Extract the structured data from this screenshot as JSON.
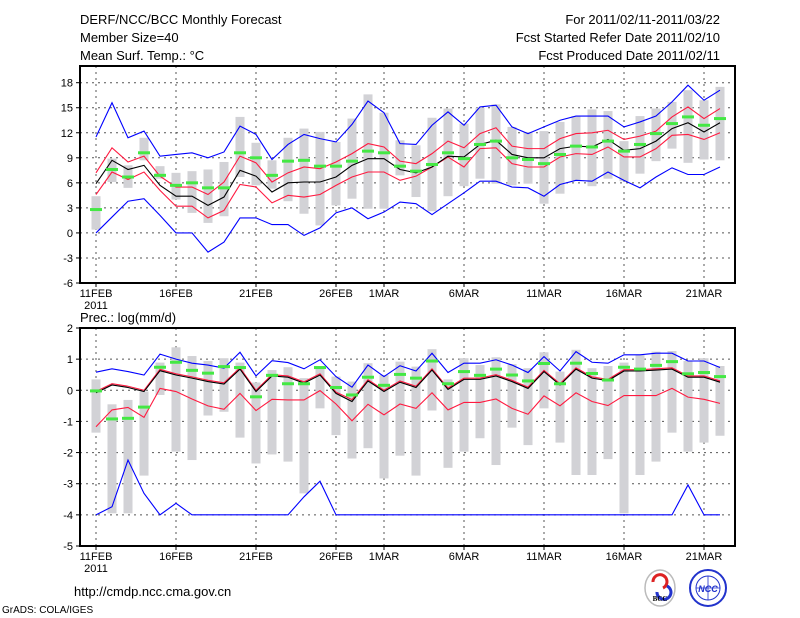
{
  "header": {
    "title": "DERF/NCC/BCC Monthly Forecast",
    "member_size": "Member Size=40",
    "variable": "Mean Surf. Temp.: °C",
    "period": "For 2011/02/11-2011/03/22",
    "started": "Fcst Started Refer Date 2011/02/10",
    "produced": "Fcst Produced Date 2011/02/11"
  },
  "footer": {
    "url": "http://cmdp.ncc.cma.gov.cn",
    "credit": "GrADS: COLA/IGES",
    "logo_bcc": "BCC",
    "logo_ncc": "NCC"
  },
  "colors": {
    "max_min": "#0000ff",
    "spread": "#ff1a40",
    "mean": "#000000",
    "obs": "#44e844",
    "range": "#d2d2d6"
  },
  "chart_data": [
    {
      "type": "line",
      "title": "Mean Surf. Temp.: °C",
      "ylim": [
        -6,
        20
      ],
      "yticks": [
        -6,
        -3,
        0,
        3,
        6,
        9,
        12,
        15,
        18
      ],
      "xtick_labels": [
        {
          "day": 0,
          "label": "11FEB",
          "sub": "2011"
        },
        {
          "day": 5,
          "label": "16FEB"
        },
        {
          "day": 10,
          "label": "21FEB"
        },
        {
          "day": 15,
          "label": "26FEB"
        },
        {
          "day": 18,
          "label": "1MAR"
        },
        {
          "day": 23,
          "label": "6MAR"
        },
        {
          "day": 28,
          "label": "11MAR"
        },
        {
          "day": 33,
          "label": "16MAR"
        },
        {
          "day": 38,
          "label": "21MAR"
        }
      ],
      "max": [
        11.5,
        15.6,
        11.4,
        12.2,
        9.2,
        9.4,
        9.6,
        9.0,
        9.7,
        12.8,
        11.8,
        8.8,
        10.6,
        11.8,
        11.3,
        10.9,
        13.0,
        15.8,
        14.4,
        10.7,
        10.6,
        12.9,
        14.5,
        12.9,
        15.1,
        15.3,
        12.7,
        11.9,
        12.7,
        13.5,
        14.0,
        14.0,
        14.0,
        12.7,
        13.3,
        14.0,
        15.7,
        17.7,
        15.9,
        17.1
      ],
      "upper": [
        7.2,
        10.2,
        8.5,
        9.2,
        6.8,
        5.5,
        5.5,
        4.6,
        6.1,
        9.2,
        8.4,
        6.1,
        7.2,
        7.9,
        7.7,
        8.5,
        9.5,
        10.7,
        10.3,
        8.6,
        8.3,
        9.5,
        11.0,
        10.2,
        11.9,
        12.6,
        10.4,
        10.1,
        10.1,
        11.3,
        11.9,
        12.0,
        12.3,
        11.2,
        11.6,
        12.2,
        13.9,
        15.1,
        13.7,
        14.9
      ],
      "mean": [
        5.9,
        8.7,
        7.6,
        8.1,
        5.7,
        4.4,
        4.4,
        3.3,
        4.3,
        7.5,
        6.8,
        4.9,
        6.0,
        6.1,
        6.1,
        6.7,
        8.1,
        8.9,
        8.9,
        7.6,
        7.2,
        7.9,
        9.2,
        9.1,
        10.6,
        11.1,
        9.4,
        9.0,
        9.0,
        10.1,
        10.4,
        10.3,
        11.2,
        9.9,
        10.1,
        11.0,
        12.5,
        13.2,
        12.1,
        13.2
      ],
      "lower": [
        4.6,
        7.3,
        6.4,
        7.3,
        5.1,
        3.2,
        3.2,
        1.8,
        2.7,
        5.8,
        5.5,
        3.6,
        4.5,
        4.3,
        4.6,
        5.7,
        6.7,
        7.3,
        7.3,
        6.3,
        6.8,
        7.9,
        9.1,
        7.9,
        10.1,
        10.2,
        8.3,
        7.9,
        7.9,
        9.1,
        9.5,
        9.4,
        10.3,
        9.1,
        9.1,
        10.1,
        11.7,
        11.8,
        11.2,
        12.0
      ],
      "min": [
        0.0,
        1.9,
        3.8,
        4.1,
        2.1,
        0.0,
        0.0,
        -2.3,
        -1.1,
        1.8,
        1.8,
        1.0,
        1.0,
        -0.3,
        0.6,
        2.4,
        3.0,
        1.7,
        2.5,
        3.7,
        3.5,
        2.2,
        3.5,
        4.8,
        6.2,
        6.2,
        5.5,
        5.4,
        4.4,
        5.8,
        6.3,
        6.2,
        7.3,
        6.3,
        5.4,
        6.7,
        7.8,
        7.0,
        7.0,
        7.9
      ],
      "observed": [
        2.8,
        7.6,
        6.7,
        9.6,
        6.9,
        5.7,
        6.0,
        5.4,
        5.4,
        9.6,
        9.0,
        6.9,
        8.6,
        8.7,
        8.0,
        8.0,
        8.6,
        9.8,
        9.6,
        8.0,
        7.4,
        8.2,
        9.6,
        8.9,
        10.6,
        11.0,
        9.0,
        8.8,
        8.3,
        9.4,
        10.4,
        10.3,
        11.0,
        9.8,
        10.6,
        11.9,
        13.1,
        13.9,
        12.9,
        13.7
      ],
      "range_high": [
        4.4,
        8.9,
        8.1,
        11.4,
        8.0,
        7.2,
        7.4,
        7.6,
        8.5,
        13.9,
        10.8,
        8.7,
        11.4,
        12.5,
        12.1,
        10.9,
        13.7,
        16.6,
        14.4,
        11.1,
        10.5,
        13.8,
        14.9,
        13.1,
        15.0,
        15.4,
        12.7,
        12.1,
        12.2,
        13.3,
        14.0,
        14.8,
        14.6,
        11.0,
        14.0,
        14.9,
        15.7,
        17.1,
        15.9,
        17.5
      ],
      "range_low": [
        0.4,
        6.1,
        5.4,
        8.7,
        6.5,
        4.0,
        2.4,
        1.2,
        2.0,
        6.7,
        5.7,
        5.3,
        3.8,
        2.3,
        0.9,
        3.3,
        4.1,
        2.9,
        2.9,
        6.9,
        4.3,
        2.6,
        4.4,
        5.6,
        6.5,
        5.9,
        5.7,
        5.9,
        3.5,
        4.7,
        6.3,
        5.6,
        6.5,
        6.2,
        7.1,
        8.6,
        10.1,
        8.4,
        8.8,
        8.7
      ]
    },
    {
      "type": "line",
      "title": "Prec.: log(mm/d)",
      "ylim": [
        -5,
        2
      ],
      "yticks": [
        -5,
        -4,
        -3,
        -2,
        -1,
        0,
        1,
        2
      ],
      "xtick_labels": [
        {
          "day": 0,
          "label": "11FEB",
          "sub": "2011"
        },
        {
          "day": 5,
          "label": "16FEB"
        },
        {
          "day": 10,
          "label": "21FEB"
        },
        {
          "day": 15,
          "label": "26FEB"
        },
        {
          "day": 18,
          "label": "1MAR"
        },
        {
          "day": 23,
          "label": "6MAR"
        },
        {
          "day": 28,
          "label": "11MAR"
        },
        {
          "day": 33,
          "label": "16MAR"
        },
        {
          "day": 38,
          "label": "21MAR"
        }
      ],
      "max": [
        0.58,
        0.69,
        0.6,
        0.49,
        1.16,
        1.0,
        0.87,
        0.81,
        0.71,
        1.22,
        0.46,
        0.95,
        0.89,
        0.69,
        0.98,
        0.44,
        0.1,
        0.81,
        0.44,
        0.79,
        0.62,
        1.19,
        0.57,
        0.87,
        0.87,
        0.98,
        0.81,
        0.57,
        1.08,
        0.62,
        1.24,
        0.9,
        0.87,
        1.14,
        1.14,
        1.19,
        1.19,
        0.94,
        0.94,
        0.73
      ],
      "upper": [
        -0.04,
        0.21,
        0.13,
        0.0,
        0.67,
        0.53,
        0.43,
        0.32,
        0.24,
        0.72,
        0.0,
        0.5,
        0.46,
        0.27,
        0.53,
        -0.06,
        -0.3,
        0.34,
        0.0,
        0.3,
        0.13,
        0.69,
        0.07,
        0.39,
        0.39,
        0.5,
        0.32,
        0.1,
        0.64,
        0.21,
        0.72,
        0.43,
        0.35,
        0.66,
        0.66,
        0.69,
        0.72,
        0.46,
        0.46,
        0.3
      ],
      "mean": [
        -0.08,
        0.17,
        0.09,
        -0.04,
        0.63,
        0.49,
        0.39,
        0.28,
        0.2,
        0.68,
        -0.04,
        0.46,
        0.42,
        0.23,
        0.49,
        -0.1,
        -0.36,
        0.3,
        -0.04,
        0.26,
        0.09,
        0.65,
        0.03,
        0.35,
        0.35,
        0.46,
        0.28,
        0.06,
        0.6,
        0.17,
        0.68,
        0.39,
        0.31,
        0.62,
        0.62,
        0.65,
        0.68,
        0.42,
        0.42,
        0.26
      ],
      "lower": [
        -1.17,
        -0.63,
        -0.55,
        -0.87,
        0.06,
        -0.04,
        -0.28,
        -0.5,
        -0.61,
        -0.1,
        -0.65,
        -0.29,
        -0.31,
        -0.31,
        -0.01,
        -0.44,
        -0.98,
        -0.45,
        -0.79,
        -0.44,
        -0.58,
        -0.08,
        -0.63,
        -0.39,
        -0.39,
        -0.28,
        -0.58,
        -0.77,
        -0.18,
        -0.5,
        -0.08,
        -0.36,
        -0.49,
        -0.17,
        -0.17,
        -0.17,
        0.06,
        -0.22,
        -0.29,
        -0.42
      ],
      "min": [
        -4,
        -3.74,
        -2.24,
        -3.31,
        -4,
        -3.63,
        -4,
        -4,
        -4,
        -4,
        -4,
        -4,
        -4,
        -3.42,
        -2.92,
        -4,
        -4,
        -4,
        -4,
        -4,
        -4,
        -4,
        -4,
        -4,
        -4,
        -4,
        -4,
        -4,
        -4,
        -4,
        -4,
        -4,
        -4,
        -4,
        -4,
        -4,
        -4,
        -3.04,
        -4,
        -4
      ],
      "observed": [
        -0.02,
        -0.92,
        -0.9,
        -0.54,
        0.74,
        0.9,
        0.64,
        0.55,
        0.76,
        0.73,
        -0.21,
        0.48,
        0.21,
        0.21,
        0.73,
        0.09,
        -0.15,
        0.42,
        0.16,
        0.51,
        0.39,
        0.94,
        0.21,
        0.6,
        0.48,
        0.68,
        0.49,
        0.3,
        0.86,
        0.21,
        0.87,
        0.54,
        0.33,
        0.74,
        0.68,
        0.8,
        0.92,
        0.53,
        0.57,
        0.44
      ],
      "range_high": [
        0.35,
        -0.45,
        -0.31,
        -0.04,
        0.89,
        1.38,
        1.1,
        0.94,
        1.03,
        0.89,
        0.25,
        0.65,
        0.74,
        0.39,
        0.74,
        0.44,
        0.28,
        0.87,
        0.49,
        0.92,
        0.76,
        1.32,
        0.35,
        1.03,
        0.81,
        1.06,
        0.84,
        0.71,
        1.22,
        0.6,
        1.3,
        0.71,
        0.78,
        0.89,
        1.14,
        1.24,
        1.26,
        0.94,
        1.03,
        0.78
      ],
      "range_low": [
        -1.36,
        -3.95,
        -3.95,
        -2.74,
        -0.15,
        -1.97,
        -2.24,
        -0.81,
        -0.69,
        -1.52,
        -2.35,
        -2.06,
        -2.29,
        -3.31,
        -0.58,
        -1.44,
        -2.19,
        -1.86,
        -2.83,
        -2.1,
        -2.74,
        -0.65,
        -2.49,
        -1.97,
        -1.54,
        -2.4,
        -1.2,
        -1.76,
        -0.58,
        -1.68,
        -2.72,
        -2.72,
        -2.21,
        -3.95,
        -2.72,
        -2.29,
        -1.36,
        -1.97,
        -1.68,
        -1.46
      ]
    }
  ]
}
